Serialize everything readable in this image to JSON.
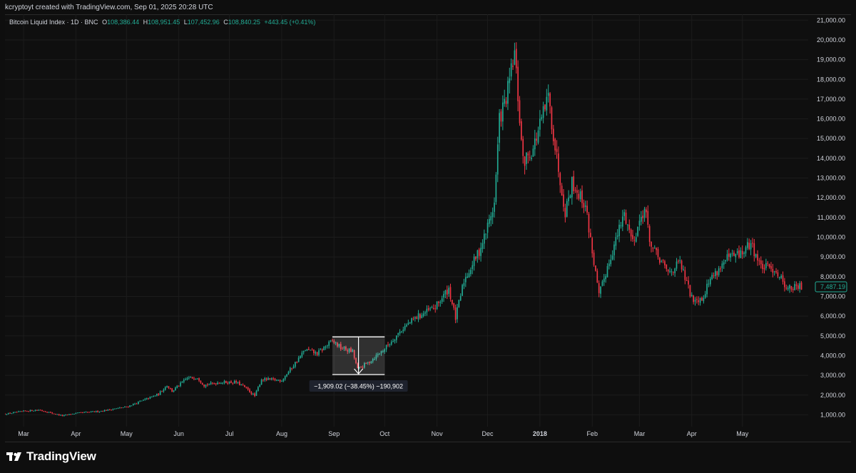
{
  "header": {
    "attribution": "kcryptoyt created with TradingView.com, Sep 01, 2025 20:28 UTC"
  },
  "legend": {
    "symbol": "Bitcoin Liquid Index · 1D · BNC",
    "open_label": "O",
    "open": "108,386.44",
    "high_label": "H",
    "high": "108,951.45",
    "low_label": "L",
    "low": "107,452.96",
    "close_label": "C",
    "close": "108,840.25",
    "change": "+443.45 (+0.41%)"
  },
  "brand": {
    "name": "TradingView"
  },
  "colors": {
    "up": "#22ab94",
    "down": "#f23645",
    "background": "#0f0f0f",
    "grid": "#1c1c1c",
    "text": "#d1d4dc",
    "price_tag": "#22ab94",
    "measure_box": "#ffffff"
  },
  "measurement": {
    "label": "−1,909.02 (−38.45%) −190,902",
    "high_price": 4950,
    "low_price": 3040,
    "start_date": "2017-08-31",
    "end_date": "2017-10-01"
  },
  "chart_data": {
    "type": "candlestick",
    "title": "",
    "yaxis_side": "right",
    "ylim": [
      400,
      21300
    ],
    "y_ticks": [
      "1,000.00",
      "2,000.00",
      "3,000.00",
      "4,000.00",
      "5,000.00",
      "6,000.00",
      "7,000.00",
      "8,000.00",
      "9,000.00",
      "10,000.00",
      "11,000.00",
      "12,000.00",
      "13,000.00",
      "14,000.00",
      "15,000.00",
      "16,000.00",
      "17,000.00",
      "18,000.00",
      "19,000.00",
      "20,000.00",
      "21,000.00"
    ],
    "x_range": [
      "2017-02-18",
      "2018-06-09"
    ],
    "x_ticks": [
      {
        "label": "Mar",
        "date": "2017-03-01"
      },
      {
        "label": "Apr",
        "date": "2017-04-01"
      },
      {
        "label": "May",
        "date": "2017-05-01"
      },
      {
        "label": "Jun",
        "date": "2017-06-01"
      },
      {
        "label": "Jul",
        "date": "2017-07-01"
      },
      {
        "label": "Aug",
        "date": "2017-08-01"
      },
      {
        "label": "Sep",
        "date": "2017-09-01"
      },
      {
        "label": "Oct",
        "date": "2017-10-01"
      },
      {
        "label": "Nov",
        "date": "2017-11-01"
      },
      {
        "label": "Dec",
        "date": "2017-12-01"
      },
      {
        "label": "2018",
        "date": "2018-01-01"
      },
      {
        "label": "Feb",
        "date": "2018-02-01"
      },
      {
        "label": "Mar",
        "date": "2018-03-01"
      },
      {
        "label": "Apr",
        "date": "2018-04-01"
      },
      {
        "label": "May",
        "date": "2018-05-01"
      }
    ],
    "last_price": 7487.19,
    "last_price_label": "7,487.19",
    "close_series": [
      [
        "2017-02-18",
        1040
      ],
      [
        "2017-03-01",
        1180
      ],
      [
        "2017-03-10",
        1250
      ],
      [
        "2017-03-17",
        1100
      ],
      [
        "2017-03-24",
        950
      ],
      [
        "2017-04-01",
        1080
      ],
      [
        "2017-04-15",
        1180
      ],
      [
        "2017-05-01",
        1400
      ],
      [
        "2017-05-10",
        1700
      ],
      [
        "2017-05-20",
        2050
      ],
      [
        "2017-05-25",
        2500
      ],
      [
        "2017-05-28",
        2200
      ],
      [
        "2017-06-06",
        2850
      ],
      [
        "2017-06-12",
        2900
      ],
      [
        "2017-06-16",
        2500
      ],
      [
        "2017-06-25",
        2650
      ],
      [
        "2017-07-05",
        2650
      ],
      [
        "2017-07-10",
        2400
      ],
      [
        "2017-07-16",
        1950
      ],
      [
        "2017-07-20",
        2800
      ],
      [
        "2017-08-01",
        2750
      ],
      [
        "2017-08-07",
        3400
      ],
      [
        "2017-08-15",
        4300
      ],
      [
        "2017-08-22",
        4100
      ],
      [
        "2017-08-31",
        4750
      ],
      [
        "2017-09-05",
        4400
      ],
      [
        "2017-09-12",
        4200
      ],
      [
        "2017-09-15",
        3300
      ],
      [
        "2017-09-22",
        3700
      ],
      [
        "2017-10-01",
        4350
      ],
      [
        "2017-10-12",
        5400
      ],
      [
        "2017-10-20",
        5950
      ],
      [
        "2017-10-31",
        6450
      ],
      [
        "2017-11-08",
        7400
      ],
      [
        "2017-11-12",
        5900
      ],
      [
        "2017-11-17",
        7800
      ],
      [
        "2017-11-26",
        9300
      ],
      [
        "2017-11-29",
        10000
      ],
      [
        "2017-12-05",
        11700
      ],
      [
        "2017-12-08",
        16000
      ],
      [
        "2017-12-12",
        17000
      ],
      [
        "2017-12-17",
        19300
      ],
      [
        "2017-12-22",
        13800
      ],
      [
        "2017-12-28",
        14500
      ],
      [
        "2018-01-06",
        17100
      ],
      [
        "2018-01-10",
        14600
      ],
      [
        "2018-01-16",
        11300
      ],
      [
        "2018-01-20",
        12800
      ],
      [
        "2018-01-28",
        11600
      ],
      [
        "2018-02-05",
        7000
      ],
      [
        "2018-02-10",
        8500
      ],
      [
        "2018-02-20",
        11200
      ],
      [
        "2018-02-25",
        9800
      ],
      [
        "2018-03-04",
        11500
      ],
      [
        "2018-03-08",
        9500
      ],
      [
        "2018-03-18",
        8200
      ],
      [
        "2018-03-25",
        8700
      ],
      [
        "2018-04-01",
        6900
      ],
      [
        "2018-04-07",
        6900
      ],
      [
        "2018-04-12",
        7900
      ],
      [
        "2018-04-22",
        8900
      ],
      [
        "2018-05-01",
        9200
      ],
      [
        "2018-05-06",
        9700
      ],
      [
        "2018-05-12",
        8500
      ],
      [
        "2018-05-20",
        8400
      ],
      [
        "2018-05-28",
        7400
      ],
      [
        "2018-06-05",
        7487
      ]
    ]
  }
}
